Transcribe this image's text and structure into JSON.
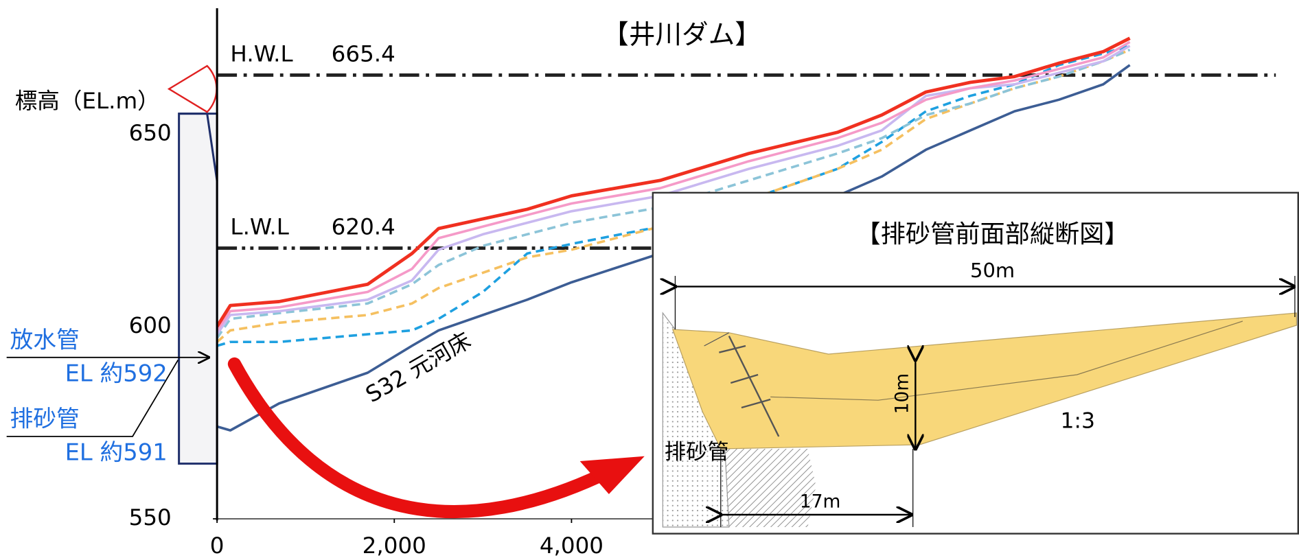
{
  "chart_data": {
    "type": "line",
    "title": "【井川ダム】",
    "y_label": "標高（EL.m）",
    "x": [
      0,
      150,
      700,
      1700,
      2200,
      2500,
      3000,
      3500,
      4000,
      5000,
      6000,
      7000,
      7500,
      8000,
      8500,
      9000,
      9500,
      10000,
      10300
    ],
    "series": [
      {
        "color": "#3c5d94",
        "style": "solid",
        "values": [
          574,
          573,
          580,
          588,
          595,
          599,
          603,
          607,
          611.5,
          619,
          627,
          634,
          639,
          646,
          651,
          656,
          659,
          663,
          668
        ]
      },
      {
        "color": "#1ea0e0",
        "style": "dashed",
        "values": [
          595,
          596,
          596,
          598,
          599,
          602,
          609,
          619,
          621.5,
          626,
          633,
          641,
          648,
          656,
          660,
          663,
          668,
          671,
          673
        ]
      },
      {
        "color": "#f5c060",
        "style": "dashed",
        "values": [
          596,
          599,
          601,
          603,
          606,
          610,
          614,
          618,
          620,
          626,
          633,
          641,
          646,
          654,
          658,
          662,
          665,
          669,
          672
        ]
      },
      {
        "color": "#8cc4d8",
        "style": "dashed",
        "values": [
          597,
          602,
          603.5,
          606,
          611,
          616,
          621,
          624,
          627,
          631,
          638,
          645,
          649,
          655,
          658,
          662,
          665,
          669,
          672
        ]
      },
      {
        "color": "#c8b8f0",
        "style": "solid",
        "values": [
          598,
          603,
          604,
          607,
          612,
          620,
          624,
          627,
          630,
          634,
          641,
          647,
          651,
          660,
          662,
          663,
          666,
          669,
          673
        ]
      },
      {
        "color": "#f59ac8",
        "style": "solid",
        "values": [
          599,
          604,
          605,
          609,
          615,
          623,
          626,
          629,
          632,
          636,
          643,
          649,
          653,
          659,
          662,
          664,
          667,
          670,
          674
        ]
      },
      {
        "color": "#f03020",
        "style": "solid",
        "values": [
          600,
          605.5,
          606.5,
          611,
          619,
          625.5,
          628,
          630.5,
          634,
          638,
          645,
          650.5,
          655,
          661,
          663.5,
          665,
          668.5,
          671.5,
          675
        ]
      }
    ],
    "xlim": [
      0,
      12200
    ],
    "ylim": [
      550,
      683
    ],
    "xticks": [
      0,
      {
        "value": 2000,
        "label": "2,000"
      },
      {
        "value": 4000,
        "label": "4,000"
      }
    ],
    "yticks": [
      550,
      600,
      650
    ],
    "reference_lines": [
      {
        "label": "H.W.L",
        "value": 665.4
      },
      {
        "label": "L.W.L",
        "value": 620.4
      }
    ],
    "annotation": "S32 元河床",
    "dam_labels": [
      {
        "name": "放水管",
        "elevation": "EL 約592"
      },
      {
        "name": "排砂管",
        "elevation": "EL 約591"
      }
    ]
  },
  "inset": {
    "title": "【排砂管前面部縦断図】",
    "width_label": "50m",
    "depth_label": "10m",
    "length_label": "17m",
    "slope_label": "1:3",
    "pipe_label": "排砂管"
  }
}
